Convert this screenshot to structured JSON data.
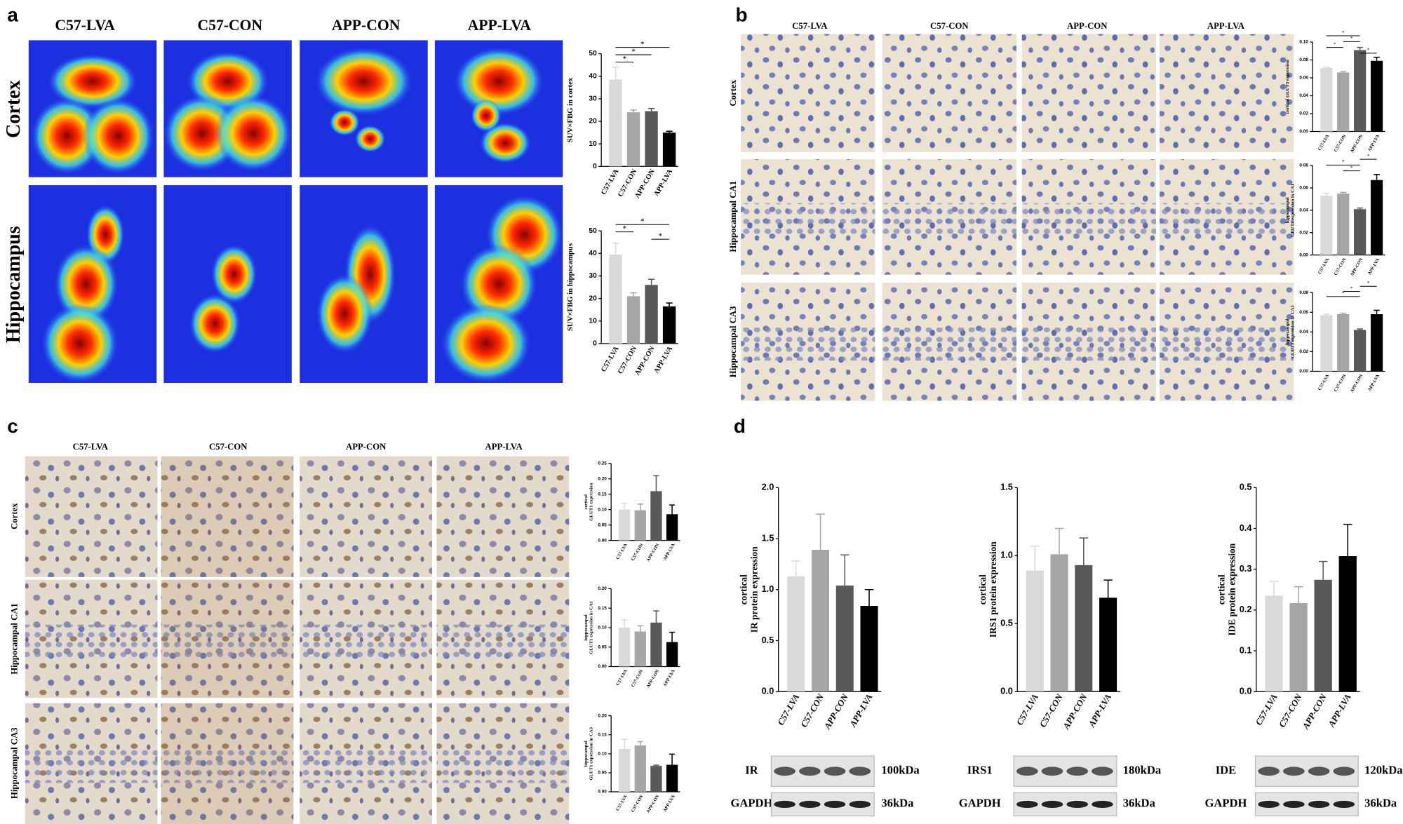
{
  "figure": {
    "panels": [
      {
        "label": "a",
        "columns": [
          "C57-LVA",
          "C57-CON",
          "APP-CON",
          "APP-LVA"
        ],
        "rows": [
          "Cortex",
          "Hippocampus"
        ]
      },
      {
        "label": "b",
        "columns": [
          "C57-LVA",
          "C57-CON",
          "APP-CON",
          "APP-LVA"
        ],
        "rows": [
          "Cortex",
          "Hippocampal CA1",
          "Hippocampal CA3"
        ]
      },
      {
        "label": "c",
        "columns": [
          "C57-LVA",
          "C57-CON",
          "APP-CON",
          "APP-LVA"
        ],
        "rows": [
          "Cortex",
          "Hippocampal CA1",
          "Hippocampal CA3"
        ]
      },
      {
        "label": "d"
      }
    ],
    "blots": [
      {
        "rows": [
          {
            "label": "IR",
            "size": "100kDa"
          },
          {
            "label": "GAPDH",
            "size": "36kDa"
          }
        ]
      },
      {
        "rows": [
          {
            "label": "IRS1",
            "size": "180kDa"
          },
          {
            "label": "GAPDH",
            "size": "36kDa"
          }
        ]
      },
      {
        "rows": [
          {
            "label": "IDE",
            "size": "120kDa"
          },
          {
            "label": "GAPDH",
            "size": "36kDa"
          }
        ]
      }
    ]
  },
  "chart_data": [
    {
      "type": "bar",
      "ylabel": [
        "SUV×FBG in cortex"
      ],
      "categories": [
        "C57-LVA",
        "C57-CON",
        "APP-CON",
        "APP-LVA"
      ],
      "values": [
        38.5,
        24,
        24.5,
        15
      ],
      "errors": [
        5.5,
        1,
        1.2,
        0.6
      ],
      "colors": [
        "#d9d9d9",
        "#a6a6a6",
        "#595959",
        "#000000"
      ],
      "ylim": [
        0,
        50
      ],
      "yticks": [
        0,
        10,
        20,
        30,
        40,
        50
      ],
      "brackets": [
        {
          "from": "C57-LVA",
          "to": "APP-LVA",
          "label": "*"
        },
        {
          "from": "C57-LVA",
          "to": "APP-CON",
          "label": "*"
        },
        {
          "from": "C57-LVA",
          "to": "C57-CON",
          "label": "*"
        }
      ]
    },
    {
      "type": "bar",
      "ylabel": [
        "SUV×FBG in hippocampus"
      ],
      "categories": [
        "C57-LVA",
        "C57-CON",
        "APP-CON",
        "APP-LVA"
      ],
      "values": [
        39.5,
        21,
        26,
        16.5
      ],
      "errors": [
        5,
        1.5,
        2.5,
        1.5
      ],
      "colors": [
        "#d9d9d9",
        "#a6a6a6",
        "#595959",
        "#000000"
      ],
      "ylim": [
        0,
        50
      ],
      "yticks": [
        0,
        10,
        20,
        30,
        40,
        50
      ],
      "brackets": [
        {
          "from": "C57-LVA",
          "to": "APP-LVA",
          "label": "*"
        },
        {
          "from": "C57-LVA",
          "to": "C57-CON",
          "label": "*"
        },
        {
          "from": "APP-CON",
          "to": "APP-LVA",
          "label": "*"
        }
      ]
    },
    {
      "type": "bar",
      "ylabel": [
        "cortical GLUT3 expression"
      ],
      "categories": [
        "C57-LVA",
        "C57-CON",
        "APP-CON",
        "APP-LVA"
      ],
      "values": [
        0.071,
        0.066,
        0.091,
        0.079
      ],
      "errors": [
        0.001,
        0.001,
        0.003,
        0.004
      ],
      "colors": [
        "#d9d9d9",
        "#a6a6a6",
        "#595959",
        "#000000"
      ],
      "ylim": [
        0,
        0.1
      ],
      "yticks": [
        {
          "value": 0,
          "label": "0.00"
        },
        {
          "value": 0.02,
          "label": "0.02"
        },
        {
          "value": 0.04,
          "label": "0.04"
        },
        {
          "value": 0.06,
          "label": "0.06"
        },
        {
          "value": 0.08,
          "label": "0.08"
        },
        {
          "value": 0.1,
          "label": "0.10"
        }
      ],
      "brackets": [
        {
          "from": "C57-LVA",
          "to": "APP-CON",
          "label": "*"
        },
        {
          "from": "C57-CON",
          "to": "APP-CON",
          "label": "*"
        },
        {
          "from": "C57-LVA",
          "to": "C57-CON",
          "label": "*"
        },
        {
          "from": "APP-CON",
          "to": "APP-LVA",
          "label": "*"
        }
      ]
    },
    {
      "type": "bar",
      "ylabel": [
        "hippocampal",
        "GLUT3 expression in CA1"
      ],
      "categories": [
        "C57-LVA",
        "C57-CON",
        "APP-CON",
        "APP-LVA"
      ],
      "values": [
        0.053,
        0.055,
        0.041,
        0.067
      ],
      "errors": [
        0.002,
        0.001,
        0.001,
        0.005
      ],
      "colors": [
        "#d9d9d9",
        "#a6a6a6",
        "#595959",
        "#000000"
      ],
      "ylim": [
        0,
        0.08
      ],
      "yticks": [
        {
          "value": 0,
          "label": "0.00"
        },
        {
          "value": 0.02,
          "label": "0.02"
        },
        {
          "value": 0.04,
          "label": "0.04"
        },
        {
          "value": 0.06,
          "label": "0.06"
        },
        {
          "value": 0.08,
          "label": "0.08"
        }
      ],
      "brackets": [
        {
          "from": "APP-CON",
          "to": "APP-LVA",
          "label": "*"
        },
        {
          "from": "C57-LVA",
          "to": "APP-CON",
          "label": "*"
        },
        {
          "from": "C57-CON",
          "to": "APP-CON",
          "label": "*"
        }
      ]
    },
    {
      "type": "bar",
      "ylabel": [
        "hippocampal",
        "GLUT3 expression in CA3"
      ],
      "categories": [
        "C57-LVA",
        "C57-CON",
        "APP-CON",
        "APP-LVA"
      ],
      "values": [
        0.057,
        0.058,
        0.042,
        0.058
      ],
      "errors": [
        0.001,
        0.001,
        0.001,
        0.004
      ],
      "colors": [
        "#d9d9d9",
        "#a6a6a6",
        "#595959",
        "#000000"
      ],
      "ylim": [
        0,
        0.08
      ],
      "yticks": [
        {
          "value": 0,
          "label": "0.00"
        },
        {
          "value": 0.02,
          "label": "0.02"
        },
        {
          "value": 0.04,
          "label": "0.04"
        },
        {
          "value": 0.06,
          "label": "0.06"
        },
        {
          "value": 0.08,
          "label": "0.08"
        }
      ],
      "brackets": [
        {
          "from": "APP-CON",
          "to": "APP-LVA",
          "label": "*"
        },
        {
          "from": "C57-CON",
          "to": "APP-CON",
          "label": "*"
        },
        {
          "from": "C57-LVA",
          "to": "APP-CON",
          "label": "*"
        }
      ]
    },
    {
      "type": "bar",
      "ylabel": [
        "cortical",
        "GLUT1 expression"
      ],
      "categories": [
        "C57-LVA",
        "C57-CON",
        "APP-CON",
        "APP-LVA"
      ],
      "values": [
        0.1,
        0.098,
        0.16,
        0.085
      ],
      "errors": [
        0.02,
        0.02,
        0.05,
        0.03
      ],
      "colors": [
        "#d9d9d9",
        "#a6a6a6",
        "#595959",
        "#000000"
      ],
      "ylim": [
        0,
        0.25
      ],
      "yticks": [
        {
          "value": 0,
          "label": "0.00"
        },
        {
          "value": 0.05,
          "label": "0.05"
        },
        {
          "value": 0.1,
          "label": "0.10"
        },
        {
          "value": 0.15,
          "label": "0.15"
        },
        {
          "value": 0.2,
          "label": "0.20"
        },
        {
          "value": 0.25,
          "label": "0.25"
        }
      ]
    },
    {
      "type": "bar",
      "ylabel": [
        "hippocampal",
        "GLUT1 expression in CA1"
      ],
      "categories": [
        "C57-LVA",
        "C57-CON",
        "APP-CON",
        "APP-LVA"
      ],
      "values": [
        0.1,
        0.09,
        0.113,
        0.063
      ],
      "errors": [
        0.02,
        0.015,
        0.03,
        0.025
      ],
      "colors": [
        "#d9d9d9",
        "#a6a6a6",
        "#595959",
        "#000000"
      ],
      "ylim": [
        0,
        0.2
      ],
      "yticks": [
        {
          "value": 0,
          "label": "0.00"
        },
        {
          "value": 0.05,
          "label": "0.05"
        },
        {
          "value": 0.1,
          "label": "0.10"
        },
        {
          "value": 0.15,
          "label": "0.15"
        },
        {
          "value": 0.2,
          "label": "0.20"
        }
      ]
    },
    {
      "type": "bar",
      "ylabel": [
        "hippocampal",
        "GLUT1 expression in CA3"
      ],
      "categories": [
        "C57-LVA",
        "C57-CON",
        "APP-CON",
        "APP-LVA"
      ],
      "values": [
        0.113,
        0.122,
        0.068,
        0.071
      ],
      "errors": [
        0.025,
        0.01,
        0.002,
        0.028
      ],
      "colors": [
        "#d9d9d9",
        "#a6a6a6",
        "#595959",
        "#000000"
      ],
      "ylim": [
        0,
        0.2
      ],
      "yticks": [
        {
          "value": 0,
          "label": "0.00"
        },
        {
          "value": 0.05,
          "label": "0.05"
        },
        {
          "value": 0.1,
          "label": "0.10"
        },
        {
          "value": 0.15,
          "label": "0.15"
        },
        {
          "value": 0.2,
          "label": "0.20"
        }
      ]
    },
    {
      "type": "bar",
      "ylabel": [
        "cortical",
        "IR protein expression"
      ],
      "categories": [
        "C57-LVA",
        "C57-CON",
        "APP-CON",
        "APP-LVA"
      ],
      "values": [
        1.13,
        1.39,
        1.04,
        0.84
      ],
      "errors": [
        0.15,
        0.35,
        0.3,
        0.16
      ],
      "colors": [
        "#d9d9d9",
        "#a6a6a6",
        "#595959",
        "#000000"
      ],
      "ylim": [
        0,
        2
      ],
      "yticks": [
        {
          "value": 0,
          "label": "0.0"
        },
        0.5,
        {
          "value": 1,
          "label": "1.0"
        },
        1.5,
        {
          "value": 2,
          "label": "2.0"
        }
      ]
    },
    {
      "type": "bar",
      "ylabel": [
        "cortical",
        "IRS1 protein expression"
      ],
      "categories": [
        "C57-LVA",
        "C57-CON",
        "APP-CON",
        "APP-LVA"
      ],
      "values": [
        0.89,
        1.01,
        0.93,
        0.69
      ],
      "errors": [
        0.18,
        0.19,
        0.2,
        0.13
      ],
      "colors": [
        "#d9d9d9",
        "#a6a6a6",
        "#595959",
        "#000000"
      ],
      "ylim": [
        0,
        1.5
      ],
      "yticks": [
        {
          "value": 0,
          "label": "0.0"
        },
        0.5,
        {
          "value": 1,
          "label": "1.0"
        },
        1.5
      ]
    },
    {
      "type": "bar",
      "ylabel": [
        "cortical",
        "IDE protein expression"
      ],
      "categories": [
        "C57-LVA",
        "C57-CON",
        "APP-CON",
        "APP-LVA"
      ],
      "values": [
        0.235,
        0.217,
        0.274,
        0.332
      ],
      "errors": [
        0.035,
        0.04,
        0.045,
        0.078
      ],
      "colors": [
        "#d9d9d9",
        "#a6a6a6",
        "#595959",
        "#000000"
      ],
      "ylim": [
        0,
        0.5
      ],
      "yticks": [
        {
          "value": 0,
          "label": "0.0"
        },
        0.1,
        0.2,
        0.3,
        0.4,
        0.5
      ]
    }
  ]
}
